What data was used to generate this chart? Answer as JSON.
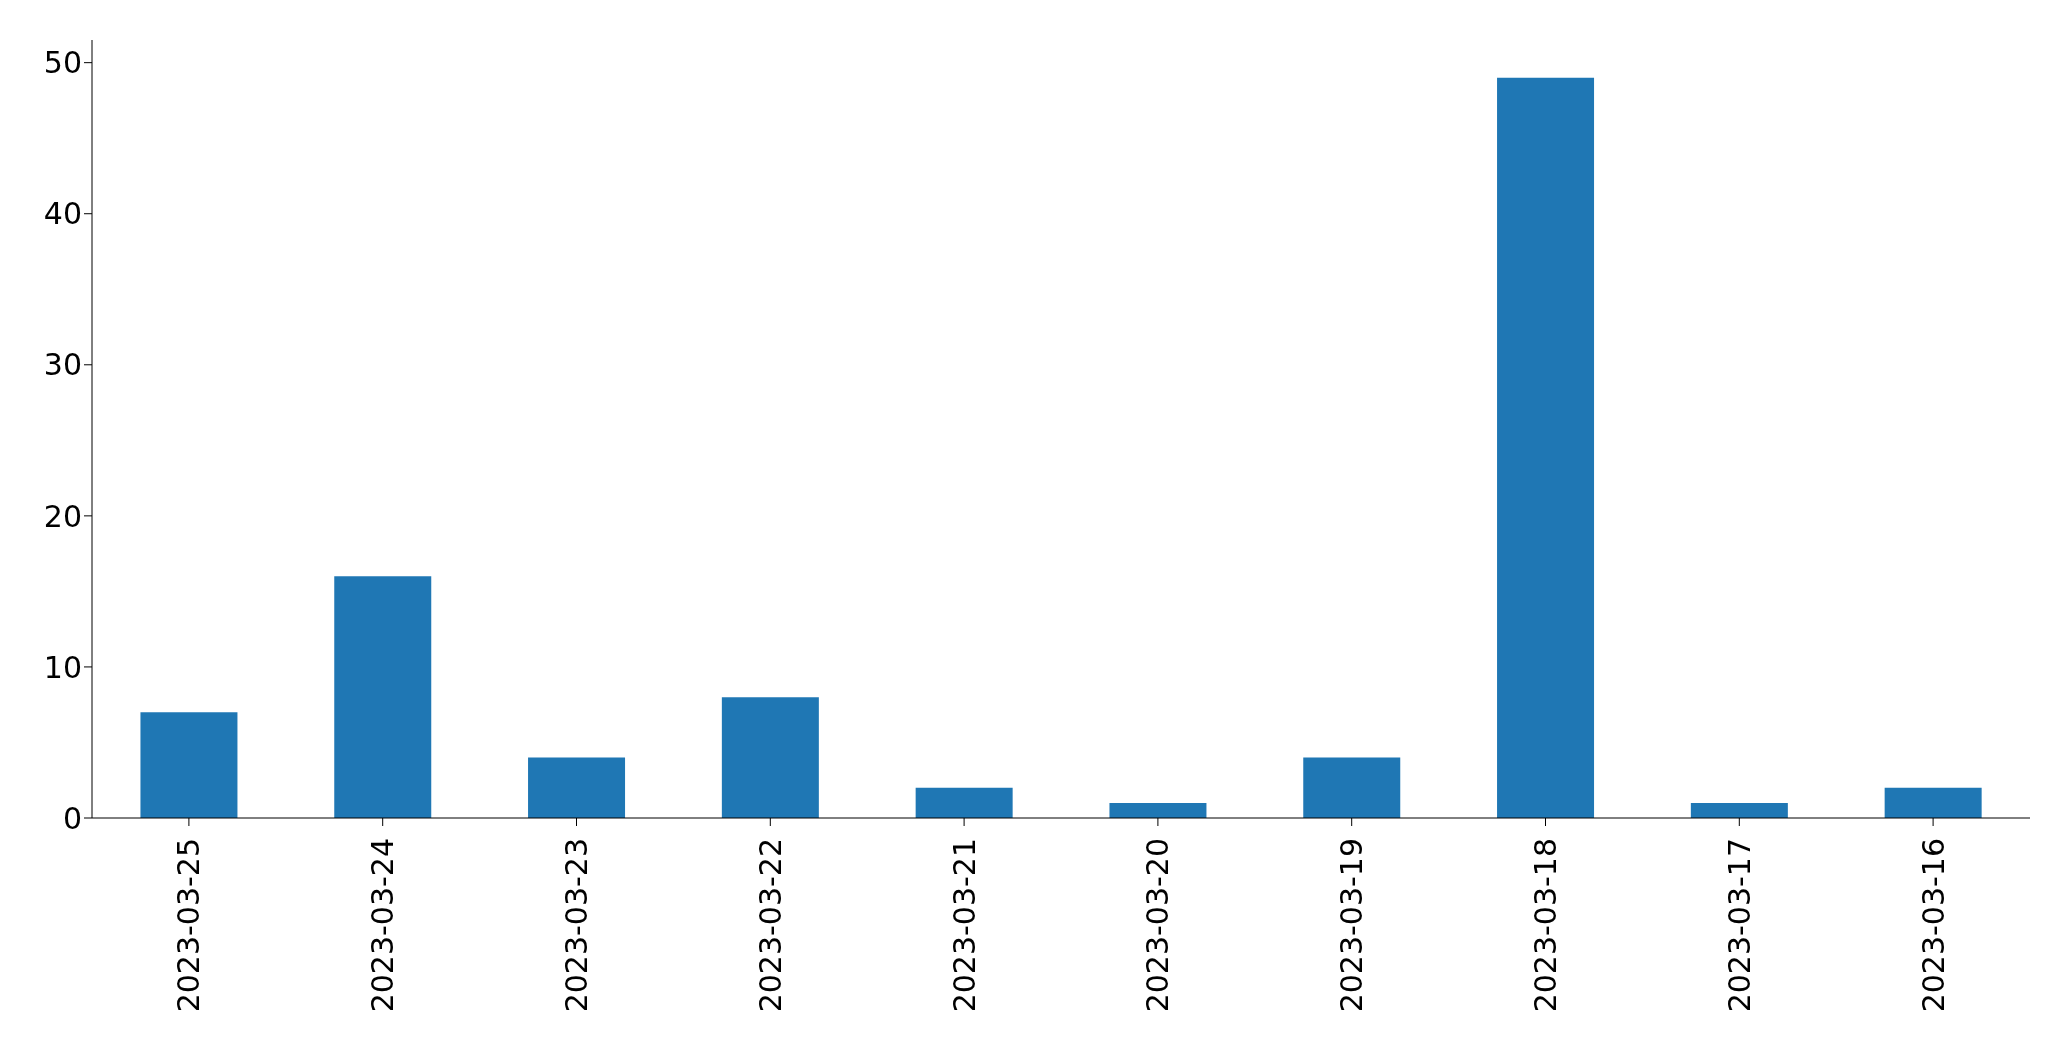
{
  "chart_data": {
    "type": "bar",
    "categories": [
      "2023-03-25",
      "2023-03-24",
      "2023-03-23",
      "2023-03-22",
      "2023-03-21",
      "2023-03-20",
      "2023-03-19",
      "2023-03-18",
      "2023-03-17",
      "2023-03-16"
    ],
    "values": [
      7,
      16,
      4,
      8,
      2,
      1,
      4,
      49,
      1,
      2
    ],
    "color": "#1f77b4",
    "ylim": [
      0,
      51.5
    ],
    "yticks": [
      0,
      10,
      20,
      30,
      40,
      50
    ]
  }
}
